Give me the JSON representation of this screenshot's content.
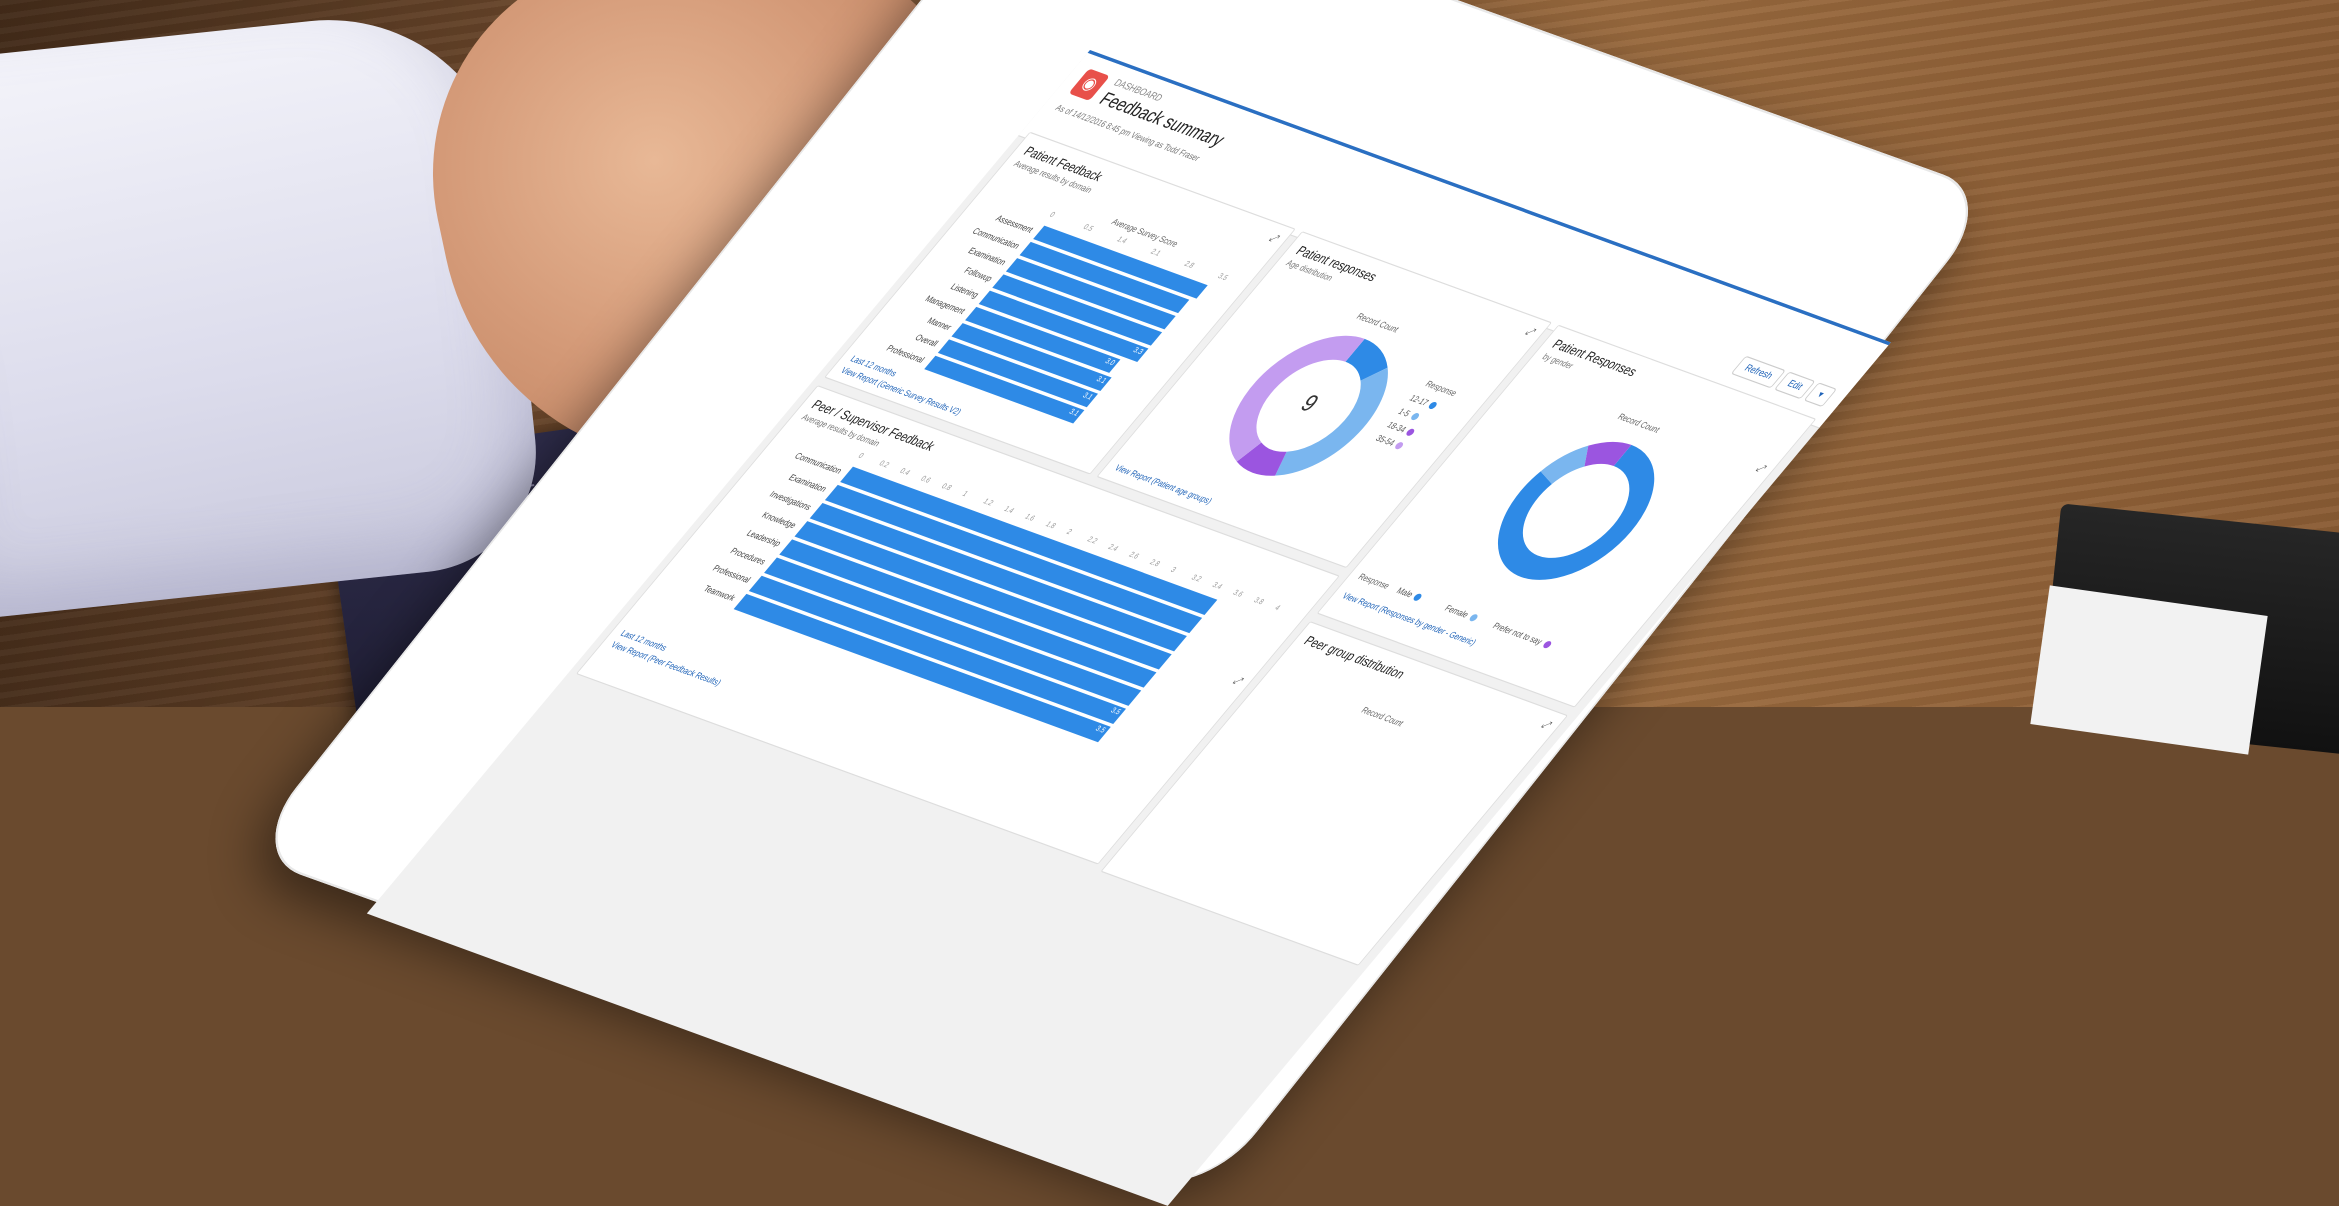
{
  "dashboard": {
    "kicker": "DASHBOARD",
    "title": "Feedback summary",
    "subtitle": "As of 14/12/2016 8:45 pm Viewing as Todd Fraser",
    "buttons": [
      "Refresh",
      "Edit",
      "▾"
    ]
  },
  "patient_feedback": {
    "title": "Patient Feedback",
    "subtitle": "Average results by domain",
    "axis_label": "Average Survey Score",
    "y_axis_label": "Assessment domain",
    "footer_period": "Last 12 months",
    "report_link": "View Report (Generic Survey Results V2)",
    "ticks": [
      "0",
      "0.5",
      "1.4",
      "2.1",
      "2.8",
      "3.5"
    ],
    "categories": [
      "Assessment",
      "Communication",
      "Examination",
      "Followup",
      "Listening",
      "Management",
      "Manner",
      "Overall",
      "Professional"
    ],
    "values": [
      3.4,
      3.3,
      3.3,
      3.3,
      3.3,
      3.0,
      3.1,
      3.1,
      3.1
    ],
    "value_labels": [
      "",
      "",
      "",
      "",
      "3.3",
      "3.0",
      "3.1",
      "3.1",
      "3.1"
    ]
  },
  "patient_responses": {
    "title": "Patient responses",
    "subtitle": "Age distribution",
    "chart_label": "Record Count",
    "center": "9",
    "legend_title": "Response",
    "legend": [
      "12-17",
      "1-5",
      "18-34",
      "35-54"
    ],
    "colors": [
      "#2e8ae6",
      "#7ab6ef",
      "#9b55e0",
      "#c39cf0"
    ],
    "report_link": "View Report (Patient age groups)"
  },
  "peer_feedback": {
    "title": "Peer / Supervisor Feedback",
    "subtitle": "Average results by domain",
    "axis_label": "Average Survey Score",
    "y_axis_label": "Assessment domain",
    "footer_period": "Last 12 months",
    "report_link": "View Report (Peer Feedback Results)",
    "ticks": [
      "0",
      "0.2",
      "0.4",
      "0.6",
      "0.8",
      "1",
      "1.2",
      "1.4",
      "1.6",
      "1.8",
      "2",
      "2.2",
      "2.4",
      "2.6",
      "2.8",
      "3",
      "3.2",
      "3.4",
      "3.6",
      "3.8",
      "4"
    ],
    "categories": [
      "Communication",
      "Examination",
      "Investigations",
      "Knowledge",
      "Leadership",
      "Procedures",
      "Professional",
      "Teamwork"
    ],
    "values": [
      3.5,
      3.5,
      3.5,
      3.5,
      3.5,
      3.5,
      3.5,
      3.5
    ],
    "value_labels": [
      "",
      "",
      "",
      "",
      "",
      "",
      "3.5",
      "3.5"
    ]
  },
  "patient_gender": {
    "title": "Patient Responses",
    "subtitle": "by gender",
    "chart_label": "Record Count",
    "legend_title": "Response",
    "legend": [
      "Male",
      "Female",
      "Prefer not to say"
    ],
    "colors": [
      "#2e8ae6",
      "#7ab6ef",
      "#9b55e0"
    ],
    "report_link": "View Report (Responses by gender - Generic)"
  },
  "peer_group": {
    "title": "Peer group distribution",
    "chart_label": "Record Count"
  },
  "chart_data": [
    {
      "type": "bar",
      "title": "Patient Feedback",
      "xlabel": "Average Survey Score",
      "ylabel": "Assessment domain",
      "categories": [
        "Assessment",
        "Communication",
        "Examination",
        "Followup",
        "Listening",
        "Management",
        "Manner",
        "Overall",
        "Professional"
      ],
      "values": [
        3.4,
        3.3,
        3.3,
        3.3,
        3.3,
        3.0,
        3.1,
        3.1,
        3.1
      ],
      "xlim": [
        0,
        3.5
      ]
    },
    {
      "type": "pie",
      "title": "Patient responses",
      "categories": [
        "12-17",
        "1-5",
        "18-34",
        "35-54"
      ],
      "values": [
        1,
        3,
        1,
        4
      ]
    },
    {
      "type": "bar",
      "title": "Peer / Supervisor Feedback",
      "xlabel": "Average Survey Score",
      "ylabel": "Assessment domain",
      "categories": [
        "Communication",
        "Examination",
        "Investigations",
        "Knowledge",
        "Leadership",
        "Procedures",
        "Professional",
        "Teamwork"
      ],
      "values": [
        3.5,
        3.5,
        3.5,
        3.5,
        3.5,
        3.5,
        3.5,
        3.5
      ],
      "xlim": [
        0,
        4
      ]
    },
    {
      "type": "pie",
      "title": "Patient Responses",
      "categories": [
        "Male",
        "Female",
        "Prefer not to say"
      ],
      "values": [
        80,
        10,
        10
      ]
    }
  ]
}
